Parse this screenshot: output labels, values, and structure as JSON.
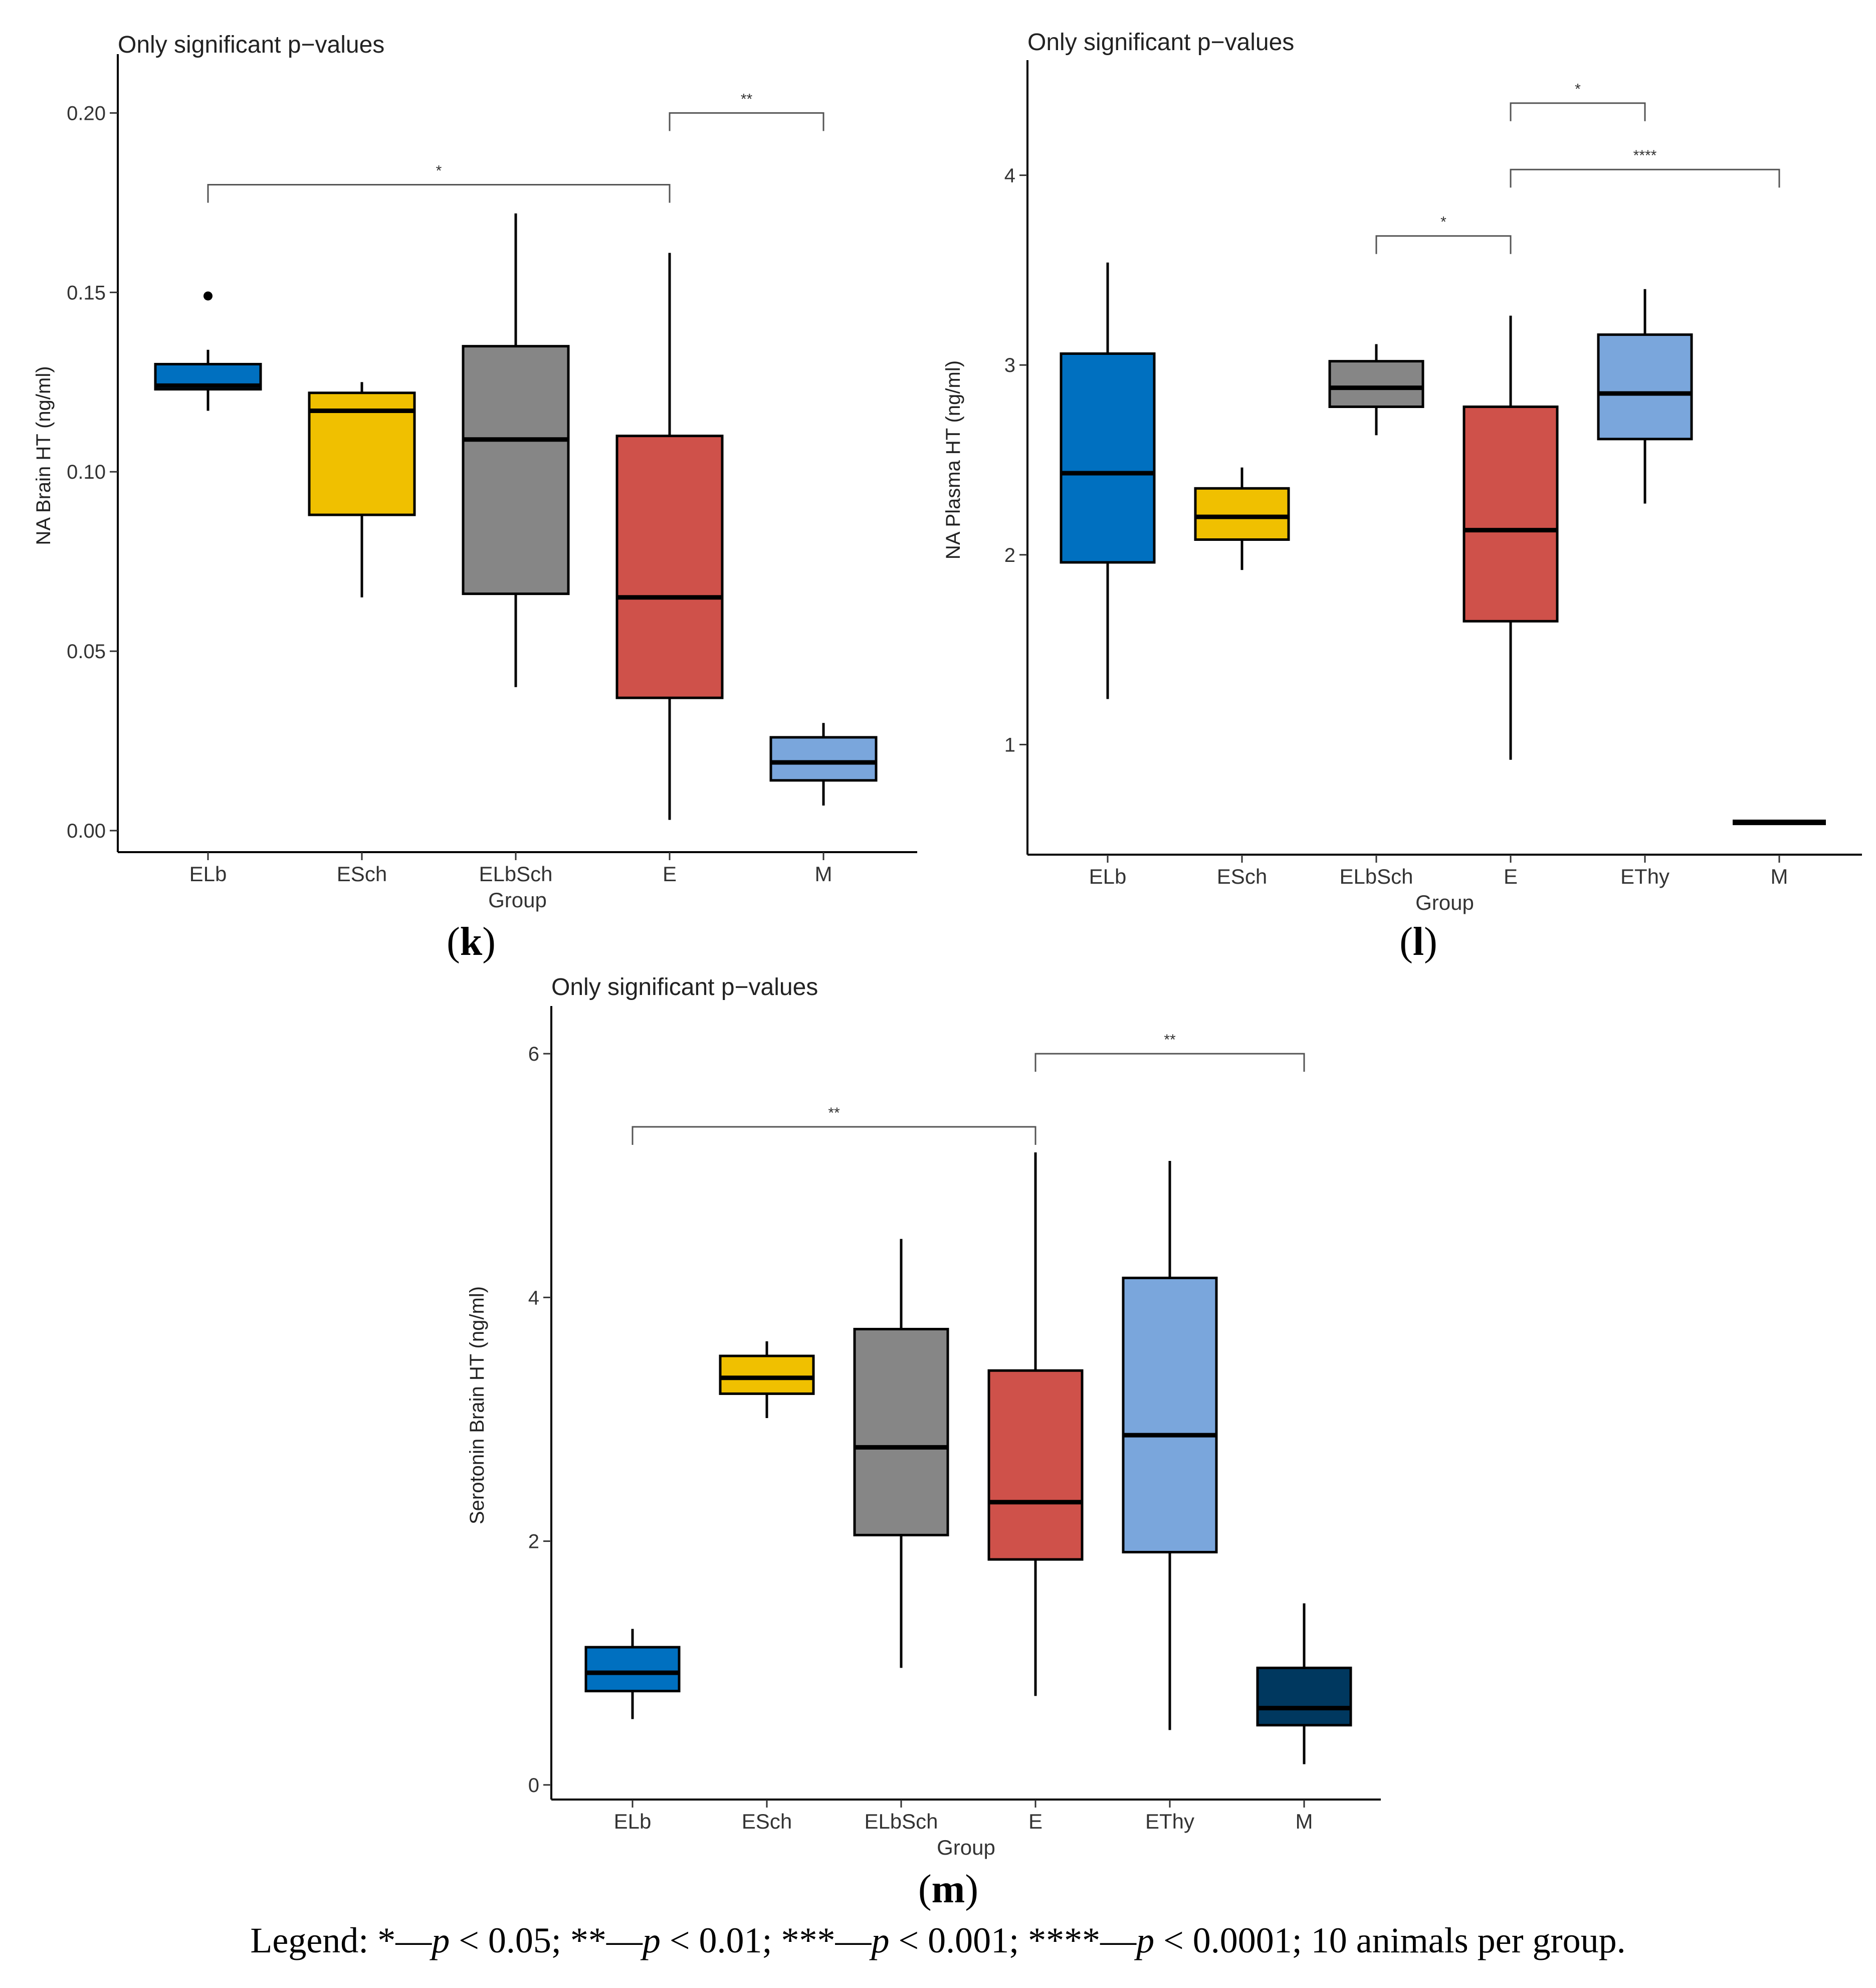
{
  "chart_data": [
    {
      "panel_label": "k",
      "type": "box",
      "subtitle": "Only significant p−values",
      "xlabel": "Group",
      "ylabel": "NA Brain HT (ng/ml)",
      "ylim": [
        -0.006,
        0.215
      ],
      "yticks": [
        0.0,
        0.05,
        0.1,
        0.15,
        0.2
      ],
      "ytick_labels": [
        "0.00",
        "0.05",
        "0.10",
        "0.15",
        "0.20"
      ],
      "categories": [
        "ELb",
        "ESch",
        "ELbSch",
        "E",
        "M"
      ],
      "boxes": [
        {
          "group": "ELb",
          "whisker_low": 0.117,
          "q1": 0.123,
          "median": 0.124,
          "q3": 0.13,
          "whisker_high": 0.134,
          "outliers": [
            0.149
          ],
          "color": "#0070C0"
        },
        {
          "group": "ESch",
          "whisker_low": 0.065,
          "q1": 0.088,
          "median": 0.117,
          "q3": 0.122,
          "whisker_high": 0.125,
          "outliers": [],
          "color": "#F0C000"
        },
        {
          "group": "ELbSch",
          "whisker_low": 0.04,
          "q1": 0.066,
          "median": 0.109,
          "q3": 0.135,
          "whisker_high": 0.172,
          "outliers": [],
          "color": "#868686"
        },
        {
          "group": "E",
          "whisker_low": 0.003,
          "q1": 0.037,
          "median": 0.065,
          "q3": 0.11,
          "whisker_high": 0.161,
          "outliers": [],
          "color": "#CF514A"
        },
        {
          "group": "M",
          "whisker_low": 0.007,
          "q1": 0.014,
          "median": 0.019,
          "q3": 0.026,
          "whisker_high": 0.03,
          "outliers": [],
          "color": "#7AA6DC"
        }
      ],
      "significance": [
        {
          "from": "E",
          "to": "M",
          "y": 0.2,
          "label": "**"
        },
        {
          "from": "ELb",
          "to": "E",
          "y": 0.18,
          "label": "*"
        }
      ]
    },
    {
      "panel_label": "l",
      "type": "box",
      "subtitle": "Only significant p−values",
      "xlabel": "Group",
      "ylabel": "NA Plasma HT (ng/ml)",
      "ylim": [
        0.42,
        4.58
      ],
      "yticks": [
        1,
        2,
        3,
        4
      ],
      "ytick_labels": [
        "1",
        "2",
        "3",
        "4"
      ],
      "categories": [
        "ELb",
        "ESch",
        "ELbSch",
        "E",
        "EThy",
        "M"
      ],
      "boxes": [
        {
          "group": "ELb",
          "whisker_low": 1.24,
          "q1": 1.96,
          "median": 2.43,
          "q3": 3.06,
          "whisker_high": 3.54,
          "outliers": [],
          "color": "#0070C0"
        },
        {
          "group": "ESch",
          "whisker_low": 1.92,
          "q1": 2.08,
          "median": 2.2,
          "q3": 2.35,
          "whisker_high": 2.46,
          "outliers": [],
          "color": "#F0C000"
        },
        {
          "group": "ELbSch",
          "whisker_low": 2.63,
          "q1": 2.78,
          "median": 2.88,
          "q3": 3.02,
          "whisker_high": 3.11,
          "outliers": [],
          "color": "#868686"
        },
        {
          "group": "E",
          "whisker_low": 0.92,
          "q1": 1.65,
          "median": 2.13,
          "q3": 2.78,
          "whisker_high": 3.26,
          "outliers": [],
          "color": "#CF514A"
        },
        {
          "group": "EThy",
          "whisker_low": 2.27,
          "q1": 2.61,
          "median": 2.85,
          "q3": 3.16,
          "whisker_high": 3.4,
          "outliers": [],
          "color": "#7AA6DC"
        },
        {
          "group": "M",
          "whisker_low": 0.59,
          "q1": 0.59,
          "median": 0.59,
          "q3": 0.59,
          "whisker_high": 0.59,
          "outliers": [],
          "color": "#000000"
        }
      ],
      "significance": [
        {
          "from": "E",
          "to": "EThy",
          "y": 4.38,
          "label": "*"
        },
        {
          "from": "E",
          "to": "M",
          "y": 4.03,
          "label": "****"
        },
        {
          "from": "ELbSch",
          "to": "E",
          "y": 3.68,
          "label": "*"
        }
      ]
    },
    {
      "panel_label": "m",
      "type": "box",
      "subtitle": "Only significant p−values",
      "xlabel": "Group",
      "ylabel": "Serotonin Brain HT (ng/ml)",
      "ylim": [
        -0.12,
        6.35
      ],
      "yticks": [
        0,
        2,
        4,
        6
      ],
      "ytick_labels": [
        "0",
        "2",
        "4",
        "6"
      ],
      "categories": [
        "ELb",
        "ESch",
        "ELbSch",
        "E",
        "EThy",
        "M"
      ],
      "boxes": [
        {
          "group": "ELb",
          "whisker_low": 0.54,
          "q1": 0.77,
          "median": 0.92,
          "q3": 1.13,
          "whisker_high": 1.28,
          "outliers": [],
          "color": "#0070C0"
        },
        {
          "group": "ESch",
          "whisker_low": 3.01,
          "q1": 3.21,
          "median": 3.34,
          "q3": 3.52,
          "whisker_high": 3.64,
          "outliers": [],
          "color": "#F0C000"
        },
        {
          "group": "ELbSch",
          "whisker_low": 0.96,
          "q1": 2.05,
          "median": 2.77,
          "q3": 3.74,
          "whisker_high": 4.48,
          "outliers": [],
          "color": "#868686"
        },
        {
          "group": "E",
          "whisker_low": 0.73,
          "q1": 1.85,
          "median": 2.32,
          "q3": 3.4,
          "whisker_high": 5.19,
          "outliers": [],
          "color": "#CF514A"
        },
        {
          "group": "EThy",
          "whisker_low": 0.45,
          "q1": 1.91,
          "median": 2.87,
          "q3": 4.16,
          "whisker_high": 5.12,
          "outliers": [],
          "color": "#7AA6DC"
        },
        {
          "group": "M",
          "whisker_low": 0.17,
          "q1": 0.49,
          "median": 0.63,
          "q3": 0.96,
          "whisker_high": 1.49,
          "outliers": [],
          "color": "#00385F"
        }
      ],
      "significance": [
        {
          "from": "E",
          "to": "M",
          "y": 6.0,
          "label": "**"
        },
        {
          "from": "ELb",
          "to": "E",
          "y": 5.4,
          "label": "**"
        }
      ]
    }
  ],
  "legend": {
    "prefix": "Legend: ",
    "items": [
      {
        "stars": "*",
        "p": "p",
        "text": " < 0.05; "
      },
      {
        "stars": "**",
        "p": "p",
        "text": " < 0.01; "
      },
      {
        "stars": "***",
        "p": "p",
        "text": " < 0.001; "
      },
      {
        "stars": "****",
        "p": "p",
        "text": " < 0.0001; "
      }
    ],
    "suffix": "10 animals per group."
  }
}
